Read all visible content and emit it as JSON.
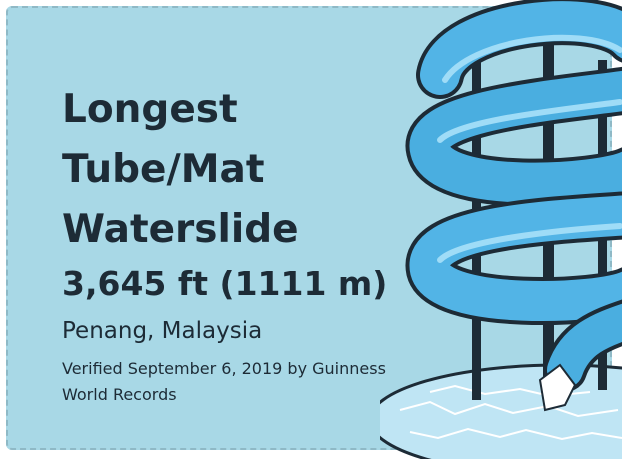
{
  "card": {
    "title_lines": [
      "Longest",
      "Tube/Mat",
      "Waterslide"
    ],
    "measurement": "3,645 ft (1111 m)",
    "location": "Penang, Malaysia",
    "verification": "Verified September 6, 2019 by Guinness World Records"
  }
}
